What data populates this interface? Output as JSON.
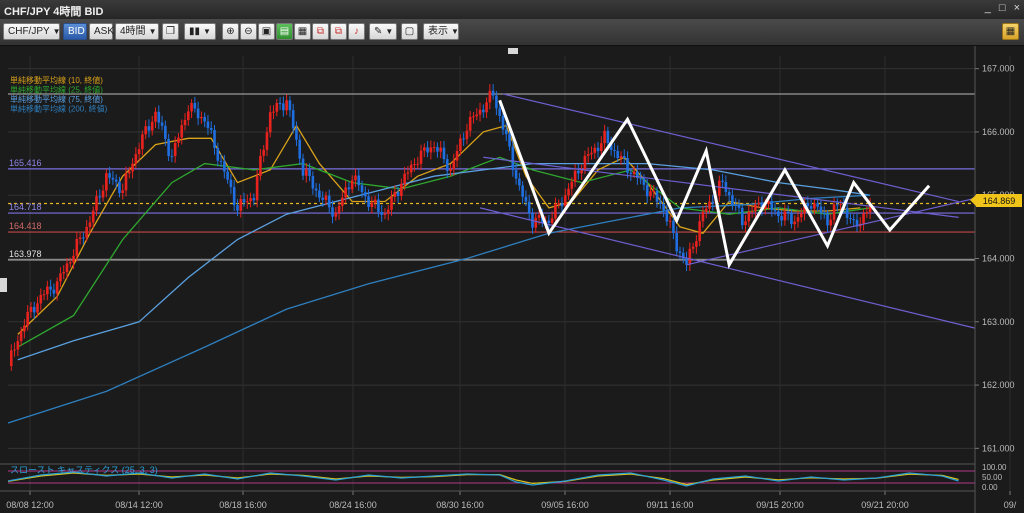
{
  "window": {
    "title": "CHF/JPY 4時間 BID",
    "buttons": [
      "_",
      "□",
      "×"
    ]
  },
  "toolbar": {
    "symbol": "CHF/JPY",
    "bid_label": "BID",
    "ask_label": "ASK",
    "period": "4時間",
    "display_label": "表示"
  },
  "colors": {
    "background": "#1b1b1b",
    "up_candle": "#e8221e",
    "down_candle": "#1f6fe0",
    "ma10": "#d9a21b",
    "ma25": "#2ea82e",
    "ma75": "#1c6aa8",
    "ma200": "#2e7fbf",
    "channel": "#6d5fd0",
    "pattern": "#ffffff",
    "current_price_bg": "#f0c419"
  },
  "legend": [
    {
      "label": "単純移動平均線 (10, 終値)",
      "color": "#d9a21b"
    },
    {
      "label": "単純移動平均線 (25, 終値)",
      "color": "#2ea82e"
    },
    {
      "label": "単純移動平均線 (75, 終値)",
      "color": "#5aa0e0"
    },
    {
      "label": "単純移動平均線 (200, 終値)",
      "color": "#2e7fbf"
    }
  ],
  "stochastic": {
    "label": "スロースト キャスティクス (25, 3, 3)",
    "tick_labels": [
      "100.00",
      "50.00",
      "0.00"
    ]
  },
  "current_price": "164.869",
  "hline_labels": [
    "165.416",
    "164.718",
    "164.418",
    "163.978"
  ],
  "chart_data": {
    "type": "candlestick",
    "symbol": "CHF/JPY",
    "timeframe": "4時間",
    "ylim": [
      160.8,
      167.2
    ],
    "y_ticks": [
      "167.000",
      "166.000",
      "165.000",
      "164.000",
      "163.000",
      "162.000",
      "161.000"
    ],
    "x_ticks": [
      "08/08 12:00",
      "08/14 12:00",
      "08/18 16:00",
      "08/24 16:00",
      "08/30 16:00",
      "09/05 16:00",
      "09/11 16:00",
      "09/15 20:00",
      "09/21 20:00",
      "09/"
    ],
    "current_price": 164.869,
    "horizontal_lines": [
      {
        "value": 166.6,
        "color": "#9a9a9a"
      },
      {
        "value": 165.416,
        "color": "#7b6fe0"
      },
      {
        "value": 164.869,
        "color": "#e6b81e",
        "style": "dashed"
      },
      {
        "value": 164.718,
        "color": "#7b6fe0"
      },
      {
        "value": 164.418,
        "color": "#c04848"
      },
      {
        "value": 163.978,
        "color": "#b0b0b0"
      }
    ],
    "close_path": [
      [
        0,
        162.3
      ],
      [
        5,
        163.0
      ],
      [
        10,
        163.4
      ],
      [
        15,
        163.6
      ],
      [
        20,
        164.1
      ],
      [
        25,
        164.6
      ],
      [
        30,
        165.3
      ],
      [
        35,
        165.1
      ],
      [
        40,
        165.8
      ],
      [
        45,
        166.3
      ],
      [
        50,
        165.6
      ],
      [
        55,
        166.4
      ],
      [
        60,
        166.2
      ],
      [
        65,
        165.5
      ],
      [
        70,
        164.8
      ],
      [
        75,
        165.0
      ],
      [
        80,
        166.3
      ],
      [
        85,
        166.5
      ],
      [
        90,
        165.4
      ],
      [
        95,
        165.0
      ],
      [
        100,
        164.7
      ],
      [
        105,
        165.3
      ],
      [
        110,
        164.9
      ],
      [
        115,
        164.7
      ],
      [
        120,
        165.2
      ],
      [
        125,
        165.6
      ],
      [
        130,
        165.8
      ],
      [
        135,
        165.4
      ],
      [
        140,
        166.1
      ],
      [
        145,
        166.4
      ],
      [
        148,
        166.6
      ],
      [
        152,
        165.9
      ],
      [
        156,
        165.1
      ],
      [
        160,
        164.6
      ],
      [
        165,
        164.6
      ],
      [
        170,
        165.0
      ],
      [
        175,
        165.5
      ],
      [
        182,
        165.9
      ],
      [
        188,
        165.5
      ],
      [
        195,
        165.1
      ],
      [
        200,
        164.8
      ],
      [
        204,
        164.2
      ],
      [
        207,
        163.9
      ],
      [
        212,
        164.7
      ],
      [
        218,
        165.2
      ],
      [
        224,
        164.6
      ],
      [
        230,
        164.9
      ],
      [
        235,
        164.7
      ],
      [
        240,
        164.6
      ],
      [
        245,
        164.9
      ],
      [
        250,
        164.6
      ],
      [
        254,
        164.9
      ],
      [
        258,
        164.5
      ],
      [
        263,
        164.8
      ]
    ],
    "moving_averages": [
      {
        "name": "単純移動平均線 (10, 終値)",
        "color": "#d9a21b",
        "values": [
          [
            3,
            162.8
          ],
          [
            15,
            163.4
          ],
          [
            25,
            164.4
          ],
          [
            35,
            165.3
          ],
          [
            45,
            165.8
          ],
          [
            55,
            165.9
          ],
          [
            62,
            165.9
          ],
          [
            70,
            165.2
          ],
          [
            80,
            165.4
          ],
          [
            88,
            166.1
          ],
          [
            95,
            165.5
          ],
          [
            105,
            164.9
          ],
          [
            115,
            164.9
          ],
          [
            125,
            165.3
          ],
          [
            135,
            165.5
          ],
          [
            145,
            166.0
          ],
          [
            152,
            166.1
          ],
          [
            158,
            165.3
          ],
          [
            165,
            164.8
          ],
          [
            172,
            164.9
          ],
          [
            180,
            165.4
          ],
          [
            188,
            165.6
          ],
          [
            195,
            165.2
          ],
          [
            205,
            164.5
          ],
          [
            212,
            164.4
          ],
          [
            220,
            164.9
          ],
          [
            230,
            164.8
          ],
          [
            240,
            164.75
          ],
          [
            250,
            164.75
          ],
          [
            260,
            164.8
          ]
        ]
      },
      {
        "name": "単純移動平均線 (25, 終値)",
        "color": "#2ea82e",
        "values": [
          [
            3,
            162.6
          ],
          [
            20,
            163.1
          ],
          [
            35,
            164.3
          ],
          [
            50,
            165.2
          ],
          [
            60,
            165.5
          ],
          [
            75,
            165.4
          ],
          [
            90,
            165.5
          ],
          [
            105,
            165.2
          ],
          [
            120,
            165.1
          ],
          [
            135,
            165.3
          ],
          [
            150,
            165.6
          ],
          [
            160,
            165.4
          ],
          [
            175,
            165.2
          ],
          [
            190,
            165.4
          ],
          [
            205,
            164.8
          ],
          [
            220,
            164.7
          ],
          [
            235,
            164.8
          ],
          [
            250,
            164.7
          ],
          [
            263,
            164.8
          ]
        ]
      },
      {
        "name": "単純移動平均線 (75, 終値)",
        "color": "#5aa0e0",
        "values": [
          [
            3,
            162.4
          ],
          [
            20,
            162.7
          ],
          [
            40,
            163.0
          ],
          [
            55,
            163.7
          ],
          [
            70,
            164.3
          ],
          [
            85,
            164.7
          ],
          [
            100,
            164.9
          ],
          [
            115,
            165.1
          ],
          [
            130,
            165.3
          ],
          [
            145,
            165.4
          ],
          [
            160,
            165.5
          ],
          [
            175,
            165.5
          ],
          [
            195,
            165.5
          ],
          [
            215,
            165.4
          ],
          [
            235,
            165.2
          ],
          [
            250,
            165.1
          ],
          [
            263,
            165.0
          ]
        ]
      },
      {
        "name": "単純移動平均線 (200, 終値)",
        "color": "#2e7fbf",
        "values": [
          [
            0,
            161.4
          ],
          [
            30,
            161.9
          ],
          [
            60,
            162.6
          ],
          [
            85,
            163.2
          ],
          [
            110,
            163.6
          ],
          [
            140,
            164.0
          ],
          [
            165,
            164.4
          ],
          [
            185,
            164.6
          ],
          [
            205,
            164.8
          ],
          [
            225,
            164.85
          ],
          [
            245,
            164.95
          ],
          [
            263,
            165.0
          ]
        ]
      }
    ],
    "channel_lines": [
      {
        "from": [
          151,
          166.6
        ],
        "to": [
          290,
          164.9
        ]
      },
      {
        "from": [
          144,
          164.8
        ],
        "to": [
          295,
          162.9
        ]
      },
      {
        "from": [
          207,
          163.9
        ],
        "to": [
          295,
          164.95
        ]
      },
      {
        "from": [
          145,
          165.6
        ],
        "to": [
          290,
          164.65
        ]
      }
    ],
    "pattern_line": [
      [
        150,
        166.5
      ],
      [
        165,
        164.4
      ],
      [
        189,
        166.2
      ],
      [
        204,
        164.6
      ],
      [
        213,
        165.7
      ],
      [
        220,
        163.9
      ],
      [
        237,
        165.4
      ],
      [
        250,
        164.2
      ],
      [
        258,
        165.2
      ],
      [
        269,
        164.45
      ],
      [
        281,
        165.15
      ]
    ],
    "stochastic": {
      "name": "スロースト キャスティクス (25, 3, 3)",
      "ylim": [
        0,
        100
      ],
      "k": [
        [
          0,
          30
        ],
        [
          10,
          60
        ],
        [
          20,
          75
        ],
        [
          30,
          55
        ],
        [
          40,
          70
        ],
        [
          50,
          45
        ],
        [
          60,
          65
        ],
        [
          70,
          40
        ],
        [
          80,
          70
        ],
        [
          90,
          55
        ],
        [
          100,
          35
        ],
        [
          110,
          60
        ],
        [
          120,
          45
        ],
        [
          130,
          55
        ],
        [
          140,
          65
        ],
        [
          150,
          60
        ],
        [
          155,
          25
        ],
        [
          160,
          10
        ],
        [
          170,
          30
        ],
        [
          180,
          60
        ],
        [
          190,
          70
        ],
        [
          200,
          35
        ],
        [
          207,
          5
        ],
        [
          215,
          40
        ],
        [
          225,
          55
        ],
        [
          235,
          30
        ],
        [
          245,
          50
        ],
        [
          255,
          35
        ],
        [
          265,
          45
        ],
        [
          275,
          70
        ],
        [
          285,
          55
        ],
        [
          290,
          30
        ]
      ],
      "d": [
        [
          0,
          28
        ],
        [
          10,
          55
        ],
        [
          20,
          70
        ],
        [
          30,
          58
        ],
        [
          40,
          65
        ],
        [
          50,
          50
        ],
        [
          60,
          60
        ],
        [
          70,
          45
        ],
        [
          80,
          65
        ],
        [
          90,
          58
        ],
        [
          100,
          40
        ],
        [
          110,
          55
        ],
        [
          120,
          48
        ],
        [
          130,
          52
        ],
        [
          140,
          62
        ],
        [
          150,
          62
        ],
        [
          155,
          35
        ],
        [
          160,
          18
        ],
        [
          170,
          28
        ],
        [
          180,
          55
        ],
        [
          190,
          65
        ],
        [
          200,
          42
        ],
        [
          207,
          12
        ],
        [
          215,
          35
        ],
        [
          225,
          50
        ],
        [
          235,
          36
        ],
        [
          245,
          46
        ],
        [
          255,
          40
        ],
        [
          265,
          44
        ],
        [
          275,
          64
        ],
        [
          285,
          58
        ],
        [
          290,
          38
        ]
      ]
    }
  }
}
